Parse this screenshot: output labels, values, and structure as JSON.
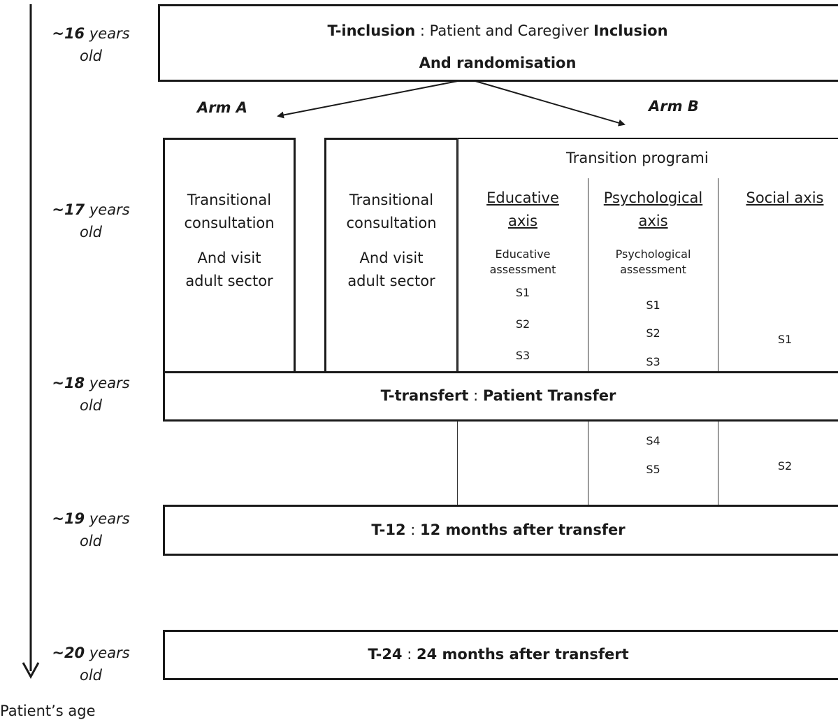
{
  "timeline": {
    "axis_label": "Patient’s age",
    "ages": [
      {
        "num": "~16",
        "unit": "years",
        "suffix": "old"
      },
      {
        "num": "~17",
        "unit": "years",
        "suffix": "old"
      },
      {
        "num": "~18",
        "unit": "years",
        "suffix": "old"
      },
      {
        "num": "~19",
        "unit": "years",
        "suffix": "old"
      },
      {
        "num": "~20",
        "unit": "years",
        "suffix": "old"
      }
    ]
  },
  "inclusion": {
    "label_bold": "T-inclusion",
    "label_rest": " : Patient and Caregiver ",
    "label_bold2": "Inclusion",
    "line2": "And randomisation"
  },
  "arms": {
    "a": "Arm A",
    "b": "Arm B"
  },
  "arm_a_box": {
    "line1": "Transitional",
    "line2": "consultation",
    "line3": "And visit",
    "line4": "adult sector"
  },
  "arm_b_box": {
    "line1": "Transitional",
    "line2": "consultation",
    "line3": "And visit",
    "line4": "adult sector"
  },
  "programme": {
    "title": "Transition programi"
  },
  "axes": {
    "educative": {
      "title1": "Educative",
      "title2": "axis",
      "assess1": "Educative",
      "assess2": "assessment",
      "sessions_before": [
        "S1",
        "S2",
        "S3"
      ],
      "sessions_after": []
    },
    "psychological": {
      "title1": "Psychological",
      "title2": "axis",
      "assess1": "Psychological",
      "assess2": "assessment",
      "sessions_before": [
        "S1",
        "S2",
        "S3"
      ],
      "sessions_after": [
        "S4",
        "S5"
      ]
    },
    "social": {
      "title1": "Social axis",
      "sessions_before": [
        "S1"
      ],
      "sessions_after": [
        "S2"
      ]
    }
  },
  "transfer": {
    "label_bold": "T-transfert",
    "label_rest": " : ",
    "label_bold2": "Patient Transfer"
  },
  "t12": {
    "label_bold": "T-12",
    "label_rest": " : ",
    "label_bold2": "12 months after transfer"
  },
  "t24": {
    "label_bold": "T-24",
    "label_rest": " : ",
    "label_bold2": "24 months after transfert"
  }
}
